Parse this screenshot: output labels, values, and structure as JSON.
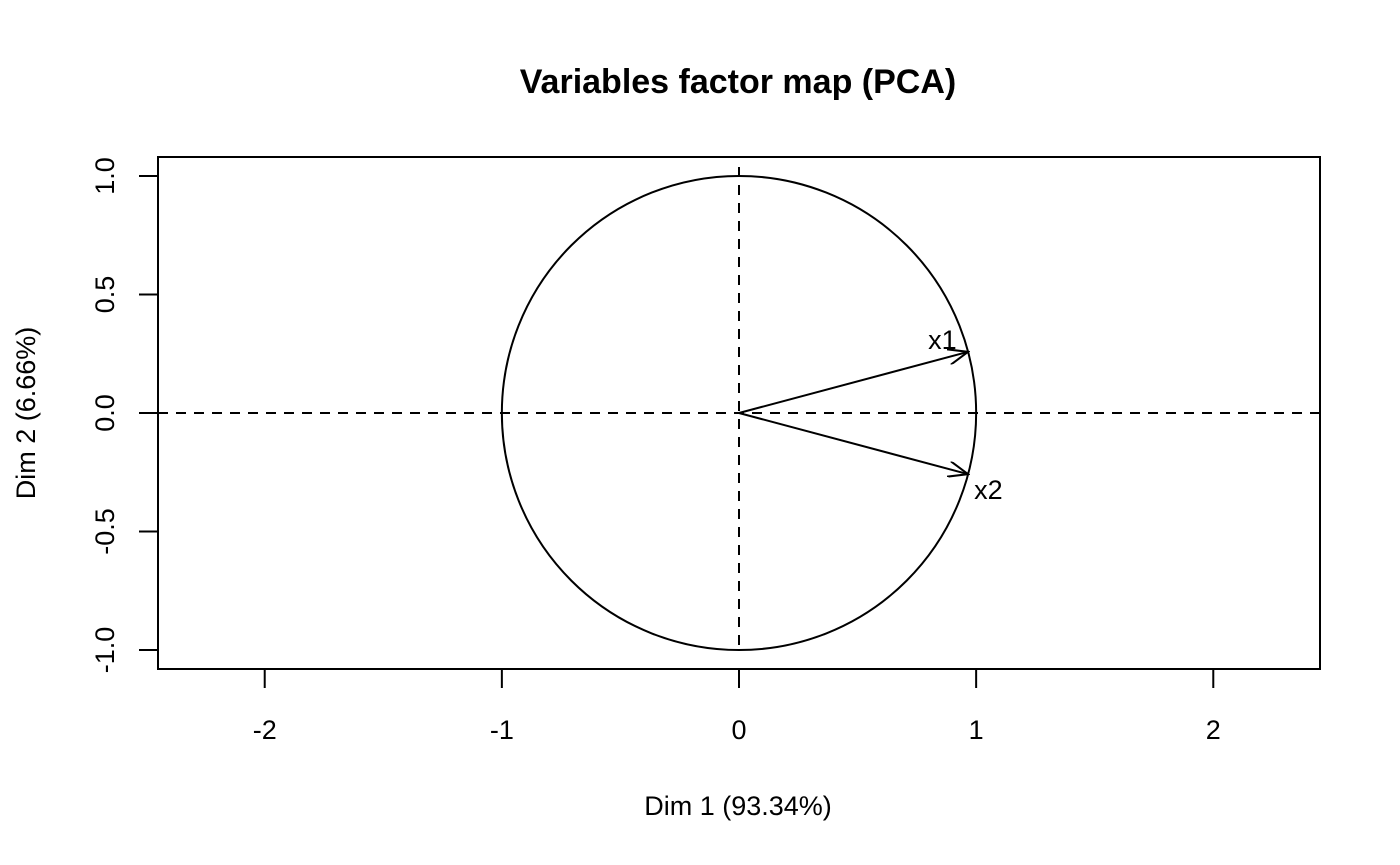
{
  "chart_data": {
    "type": "scatter",
    "title": "Variables factor map (PCA)",
    "xlabel": "Dim 1 (93.34%)",
    "ylabel": "Dim 2 (6.66%)",
    "xlim": [
      -2.45,
      2.45
    ],
    "ylim": [
      -1.08,
      1.08
    ],
    "x_ticks": [
      -2,
      -1,
      0,
      1,
      2
    ],
    "y_ticks": [
      -1.0,
      -0.5,
      0.0,
      0.5,
      1.0
    ],
    "x_tick_labels": [
      "-2",
      "-1",
      "0",
      "1",
      "2"
    ],
    "y_tick_labels": [
      "-1.0",
      "-0.5",
      "0.0",
      "0.5",
      "1.0"
    ],
    "grid": false,
    "unit_circle": true,
    "reference_lines": {
      "x": 0,
      "y": 0,
      "style": "dashed"
    },
    "variables": [
      {
        "label": "x1",
        "x": 0.966,
        "y": 0.258
      },
      {
        "label": "x2",
        "x": 0.966,
        "y": -0.258
      }
    ]
  }
}
